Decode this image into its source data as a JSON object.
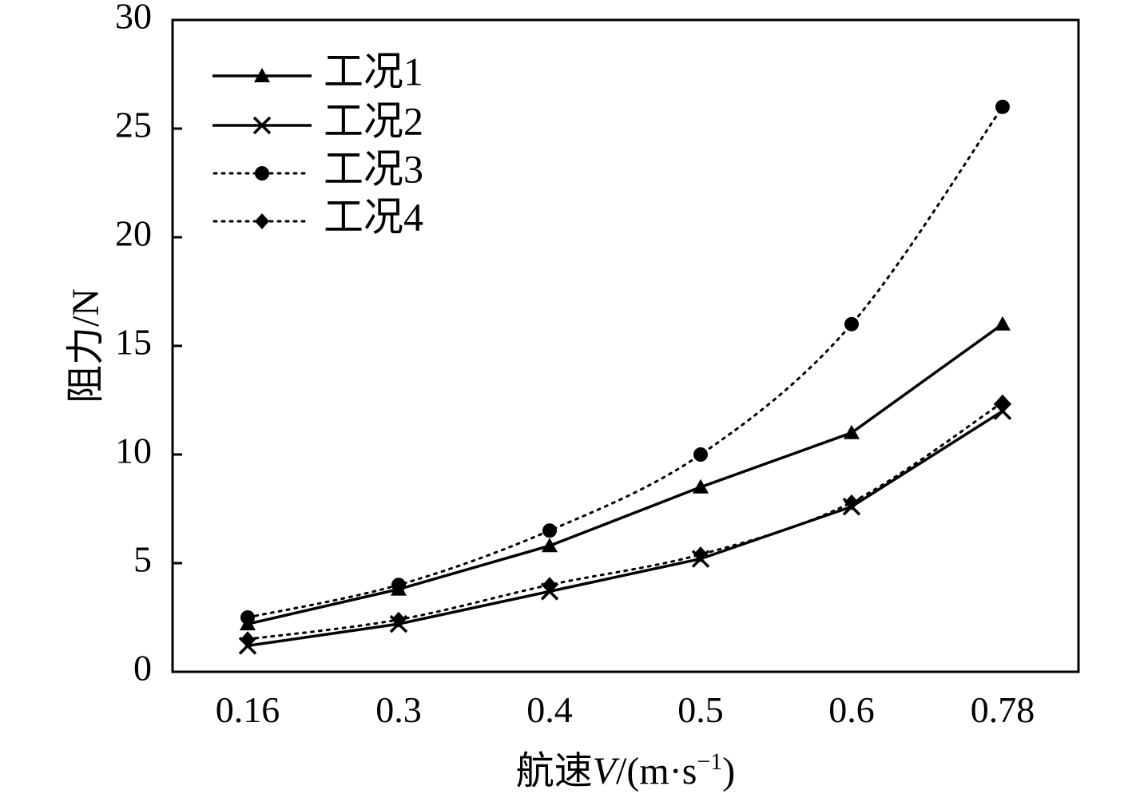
{
  "chart_data": {
    "type": "line",
    "title": "",
    "xlabel": "航速V/(m·s⁻¹)",
    "xlabel_parts": {
      "prefix": "航速",
      "variable": "V",
      "suffix": "/(m·s",
      "superscript": "−1",
      "close": ")"
    },
    "ylabel": "阻力/N",
    "categories": [
      "0.16",
      "0.3",
      "0.4",
      "0.5",
      "0.6",
      "0.78"
    ],
    "ylim": [
      0,
      30
    ],
    "yticks": [
      0,
      5,
      10,
      15,
      20,
      25,
      30
    ],
    "grid": false,
    "legend_position": "top-left",
    "series": [
      {
        "name": "工况1",
        "marker": "triangle",
        "line": "solid",
        "values": [
          2.2,
          3.8,
          5.8,
          8.5,
          11.0,
          16.0
        ]
      },
      {
        "name": "工况2",
        "marker": "x",
        "line": "solid",
        "values": [
          1.2,
          2.2,
          3.7,
          5.2,
          7.6,
          12.0
        ]
      },
      {
        "name": "工况3",
        "marker": "circle",
        "line": "dotted",
        "values": [
          2.5,
          4.0,
          6.5,
          10.0,
          16.0,
          26.0
        ]
      },
      {
        "name": "工况4",
        "marker": "diamond",
        "line": "dotted",
        "values": [
          1.5,
          2.4,
          4.0,
          5.4,
          7.8,
          12.4
        ]
      }
    ]
  }
}
